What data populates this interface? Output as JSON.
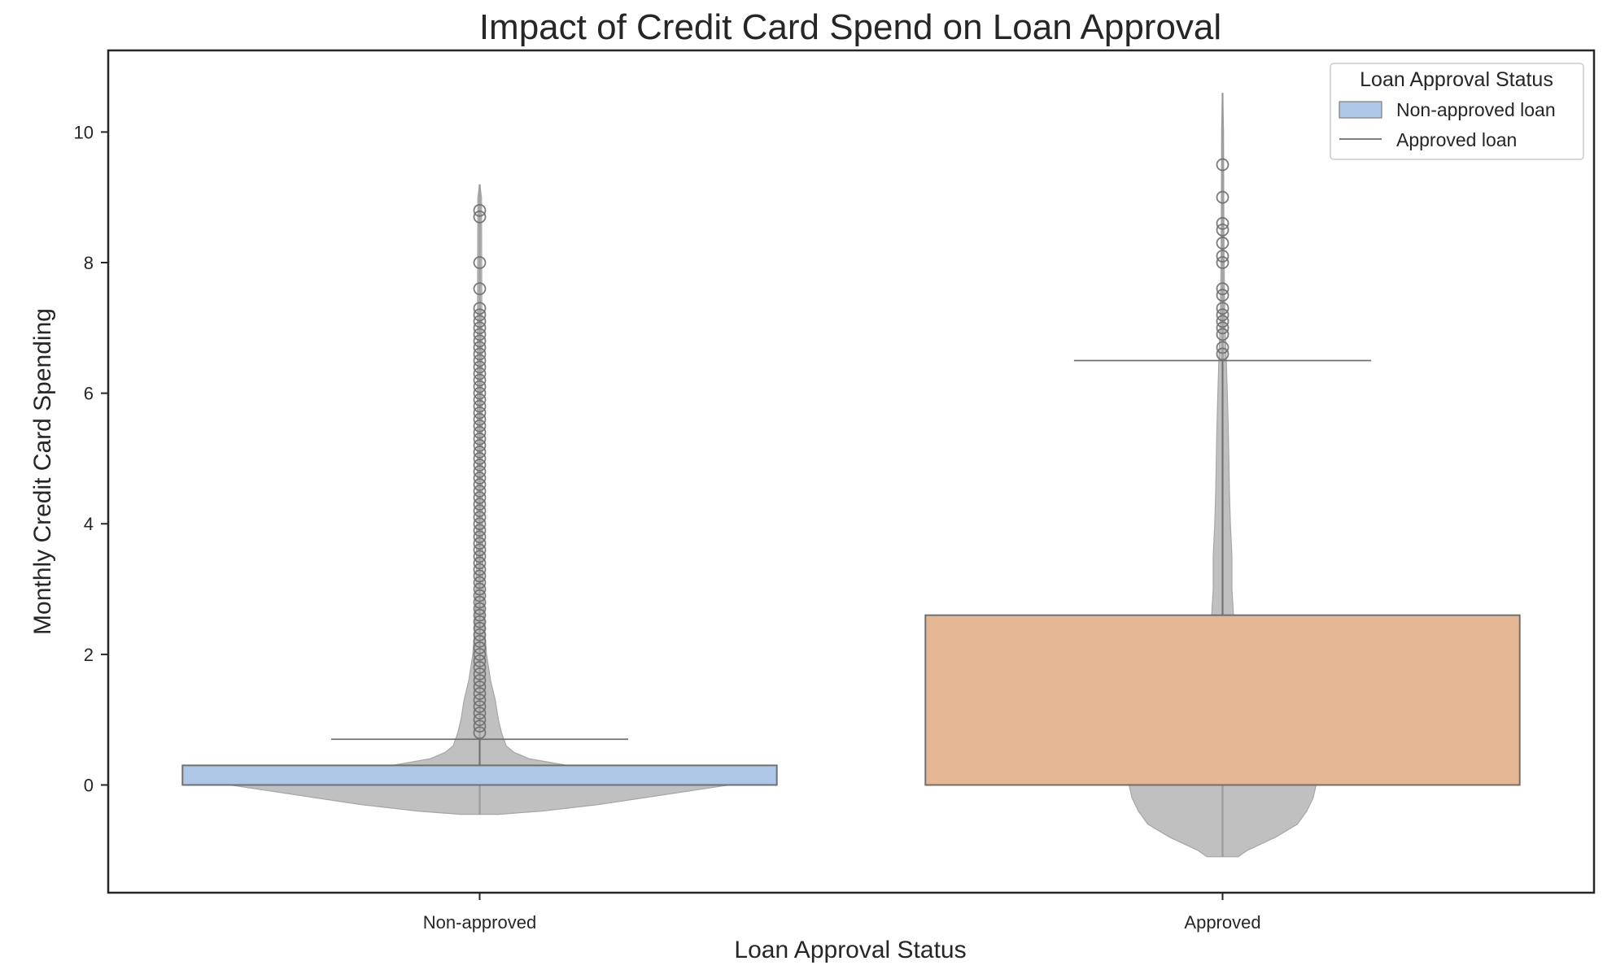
{
  "chart_data": {
    "type": "box",
    "title": "Impact of Credit Card Spend on Loan Approval",
    "xlabel": "Loan Approval Status",
    "ylabel": "Monthly Credit Card Spending",
    "categories": [
      "Non-approved",
      "Approved"
    ],
    "ylim": [
      -1.65,
      11.25
    ],
    "yticks": [
      0,
      2,
      4,
      6,
      8,
      10
    ],
    "grid": false,
    "legend": {
      "title": "Loan Approval Status",
      "placement": "top-right",
      "entries": [
        {
          "label": "Non-approved loan",
          "marker": "patch",
          "color": "#aec7e8"
        },
        {
          "label": "Approved loan",
          "marker": "line",
          "color": "#7f7f7f"
        }
      ]
    },
    "box_series": [
      {
        "category": "Non-approved",
        "q1": 0.0,
        "median": 0.0,
        "q3": 0.3,
        "whisker_low": 0.0,
        "whisker_high": 0.7,
        "fill": "#aec7e8",
        "outliers": [
          0.8,
          0.9,
          1.0,
          1.1,
          1.2,
          1.3,
          1.4,
          1.5,
          1.6,
          1.7,
          1.8,
          1.9,
          2.0,
          2.1,
          2.2,
          2.3,
          2.4,
          2.5,
          2.6,
          2.7,
          2.8,
          2.9,
          3.0,
          3.1,
          3.2,
          3.3,
          3.4,
          3.5,
          3.6,
          3.7,
          3.8,
          3.9,
          4.0,
          4.1,
          4.2,
          4.3,
          4.4,
          4.5,
          4.6,
          4.7,
          4.8,
          4.9,
          5.0,
          5.1,
          5.2,
          5.3,
          5.4,
          5.5,
          5.6,
          5.7,
          5.8,
          5.9,
          6.0,
          6.1,
          6.2,
          6.3,
          6.4,
          6.5,
          6.6,
          6.7,
          6.8,
          6.9,
          7.0,
          7.1,
          7.2,
          7.3,
          7.6,
          8.0,
          8.7,
          8.8
        ]
      },
      {
        "category": "Approved",
        "q1": 0.0,
        "median": 0.0,
        "q3": 2.6,
        "whisker_low": 0.0,
        "whisker_high": 6.5,
        "fill": "#e6b794",
        "outliers": [
          6.6,
          6.7,
          6.9,
          7.0,
          7.1,
          7.2,
          7.3,
          7.5,
          7.6,
          8.0,
          8.1,
          8.3,
          8.5,
          8.6,
          9.0,
          9.5
        ]
      }
    ],
    "violin_series": [
      {
        "category": "Non-approved",
        "color": "#bdbdbd",
        "min": -0.45,
        "max": 9.2,
        "profile": [
          [
            -0.45,
            0.06
          ],
          [
            -0.4,
            0.2
          ],
          [
            -0.3,
            0.38
          ],
          [
            -0.2,
            0.52
          ],
          [
            -0.1,
            0.66
          ],
          [
            0.0,
            0.8
          ],
          [
            0.1,
            0.68
          ],
          [
            0.2,
            0.45
          ],
          [
            0.3,
            0.28
          ],
          [
            0.4,
            0.16
          ],
          [
            0.5,
            0.11
          ],
          [
            0.6,
            0.085
          ],
          [
            0.8,
            0.07
          ],
          [
            1.0,
            0.06
          ],
          [
            1.3,
            0.05
          ],
          [
            1.6,
            0.035
          ],
          [
            2.0,
            0.022
          ],
          [
            2.5,
            0.014
          ],
          [
            3.5,
            0.01
          ],
          [
            5.0,
            0.008
          ],
          [
            7.0,
            0.007
          ],
          [
            9.0,
            0.006
          ],
          [
            9.2,
            0.0
          ]
        ]
      },
      {
        "category": "Approved",
        "color": "#bdbdbd",
        "min": -1.1,
        "max": 10.6,
        "profile": [
          [
            -1.1,
            0.05
          ],
          [
            -1.0,
            0.08
          ],
          [
            -0.8,
            0.17
          ],
          [
            -0.6,
            0.24
          ],
          [
            -0.4,
            0.27
          ],
          [
            -0.2,
            0.29
          ],
          [
            0.0,
            0.3
          ],
          [
            0.5,
            0.24
          ],
          [
            1.0,
            0.15
          ],
          [
            1.5,
            0.08
          ],
          [
            2.0,
            0.05
          ],
          [
            2.6,
            0.035
          ],
          [
            3.0,
            0.03
          ],
          [
            3.5,
            0.03
          ],
          [
            4.0,
            0.025
          ],
          [
            4.5,
            0.022
          ],
          [
            5.0,
            0.02
          ],
          [
            5.5,
            0.018
          ],
          [
            6.0,
            0.015
          ],
          [
            6.5,
            0.012
          ],
          [
            7.0,
            0.008
          ],
          [
            8.0,
            0.005
          ],
          [
            9.0,
            0.004
          ],
          [
            10.0,
            0.003
          ],
          [
            10.6,
            0.0
          ]
        ]
      }
    ]
  }
}
